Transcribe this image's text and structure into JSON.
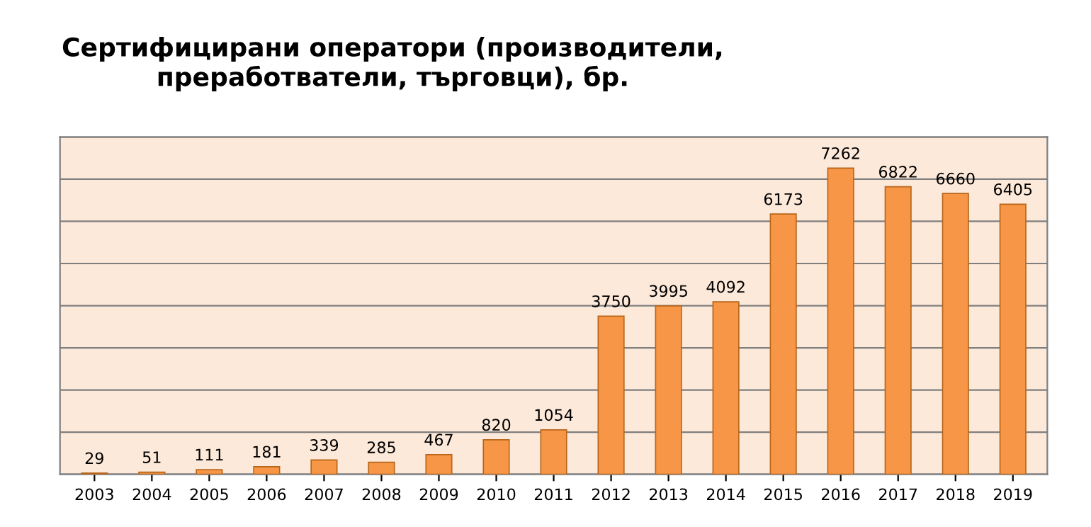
{
  "chart_data": {
    "type": "bar",
    "title": "Сертифицирани оператори (производители,\nпреработватели, търговци), бр.",
    "categories": [
      "2003",
      "2004",
      "2005",
      "2006",
      "2007",
      "2008",
      "2009",
      "2010",
      "2011",
      "2012",
      "2013",
      "2014",
      "2015",
      "2016",
      "2017",
      "2018",
      "2019"
    ],
    "values": [
      29,
      51,
      111,
      181,
      339,
      285,
      467,
      820,
      1054,
      3750,
      3995,
      4092,
      6173,
      7262,
      6822,
      6660,
      6405
    ],
    "color": "#f79646",
    "ylim": [
      0,
      8000
    ],
    "yticks": [
      {
        "value": 0,
        "label": null
      },
      {
        "value": 1000,
        "label": null
      },
      {
        "value": 2000,
        "label": null
      },
      {
        "value": 3000,
        "label": null
      },
      {
        "value": 4000,
        "label": null
      },
      {
        "value": 5000,
        "label": null
      },
      {
        "value": 6000,
        "label": null
      },
      {
        "value": 7000,
        "label": null
      },
      {
        "value": 8000,
        "label": null
      }
    ],
    "tick_labels": "x",
    "grid": "y",
    "data_labels": true
  }
}
